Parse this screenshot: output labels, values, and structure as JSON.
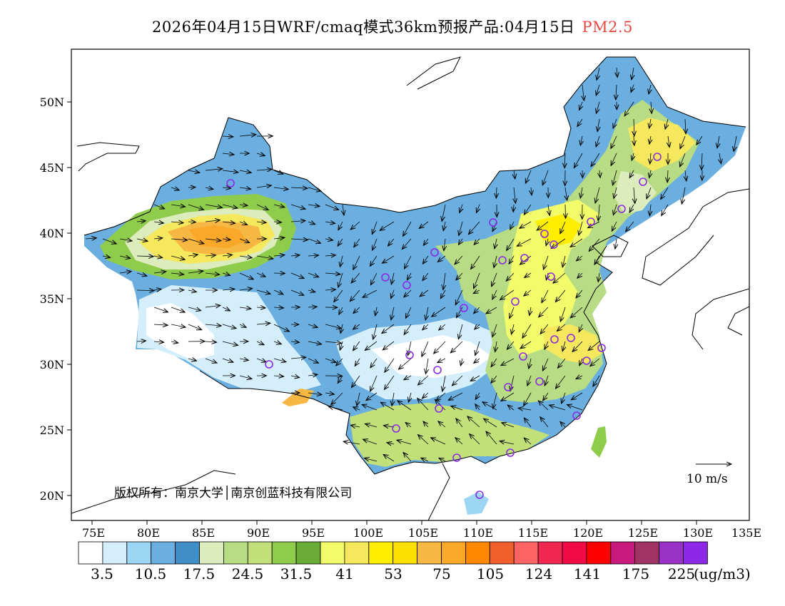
{
  "title": {
    "main": "2026年04月15日WRF/cmaq模式36km预报产品:04月15日",
    "pollutant": "PM2.5",
    "pollutant_color": "#e8473f"
  },
  "map": {
    "lat_ticks": [
      "50N",
      "45N",
      "40N",
      "35N",
      "30N",
      "25N",
      "20N"
    ],
    "lon_ticks": [
      "75E",
      "80E",
      "85E",
      "90E",
      "95E",
      "100E",
      "105E",
      "110E",
      "115E",
      "120E",
      "125E",
      "130E",
      "135E"
    ],
    "copyright": "版权所有：南京大学│南京创蓝科技有限公司",
    "scale_label": "10 m/s",
    "station_color": "#8a2be2"
  },
  "legend": {
    "unit": "(ug/m3)",
    "labels": [
      "3.5",
      "10.5",
      "17.5",
      "24.5",
      "31.5",
      "41",
      "53",
      "75",
      "105",
      "124",
      "141",
      "175",
      "225"
    ],
    "colors": [
      "#ffffff",
      "#d4eefb",
      "#9dd6f4",
      "#6aafdf",
      "#3f8ec7",
      "#dcecbc",
      "#b8dc84",
      "#c2e07a",
      "#8fcc4c",
      "#6aaa37",
      "#f2fb6a",
      "#f5e85c",
      "#ffee00",
      "#fce000",
      "#f6b743",
      "#f9a829",
      "#ff8800",
      "#f05f2c",
      "#ff6464",
      "#f02850",
      "#f00a46",
      "#ff0000",
      "#c8197d",
      "#a03264",
      "#9a32c8",
      "#8c28e6"
    ]
  }
}
